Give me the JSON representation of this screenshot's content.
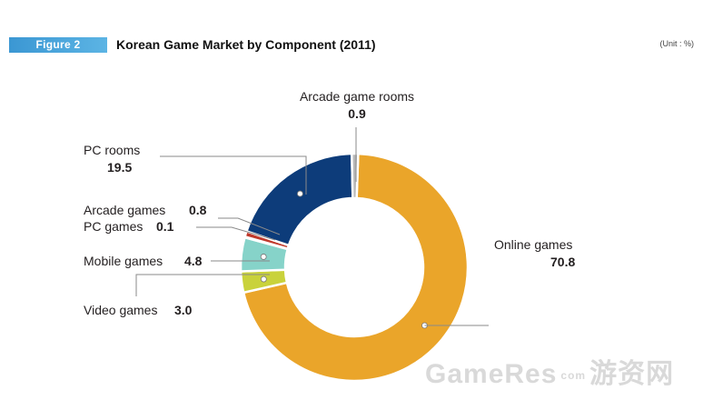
{
  "header": {
    "figure_label": "Figure 2",
    "title": "Korean Game Market by Component (2011)",
    "unit": "(Unit : %)"
  },
  "chart_data": {
    "type": "pie",
    "donut": true,
    "title": "Korean Game Market by Component (2011)",
    "unit": "%",
    "slices": [
      {
        "label": "Online games",
        "value": 70.8,
        "color": "#eaa52a"
      },
      {
        "label": "Video games",
        "value": 3.0,
        "color": "#c9d23b"
      },
      {
        "label": "Mobile games",
        "value": 4.8,
        "color": "#86d3c9"
      },
      {
        "label": "PC games",
        "value": 0.1,
        "color": "#7a96c0"
      },
      {
        "label": "Arcade games",
        "value": 0.8,
        "color": "#c0392b"
      },
      {
        "label": "PC rooms",
        "value": 19.5,
        "color": "#0d3c7a"
      },
      {
        "label": "Arcade game rooms",
        "value": 0.9,
        "color": "#b8b8b8"
      }
    ]
  },
  "watermark": {
    "text": "GameRes",
    "sep": "com",
    "cn": "游资网"
  }
}
